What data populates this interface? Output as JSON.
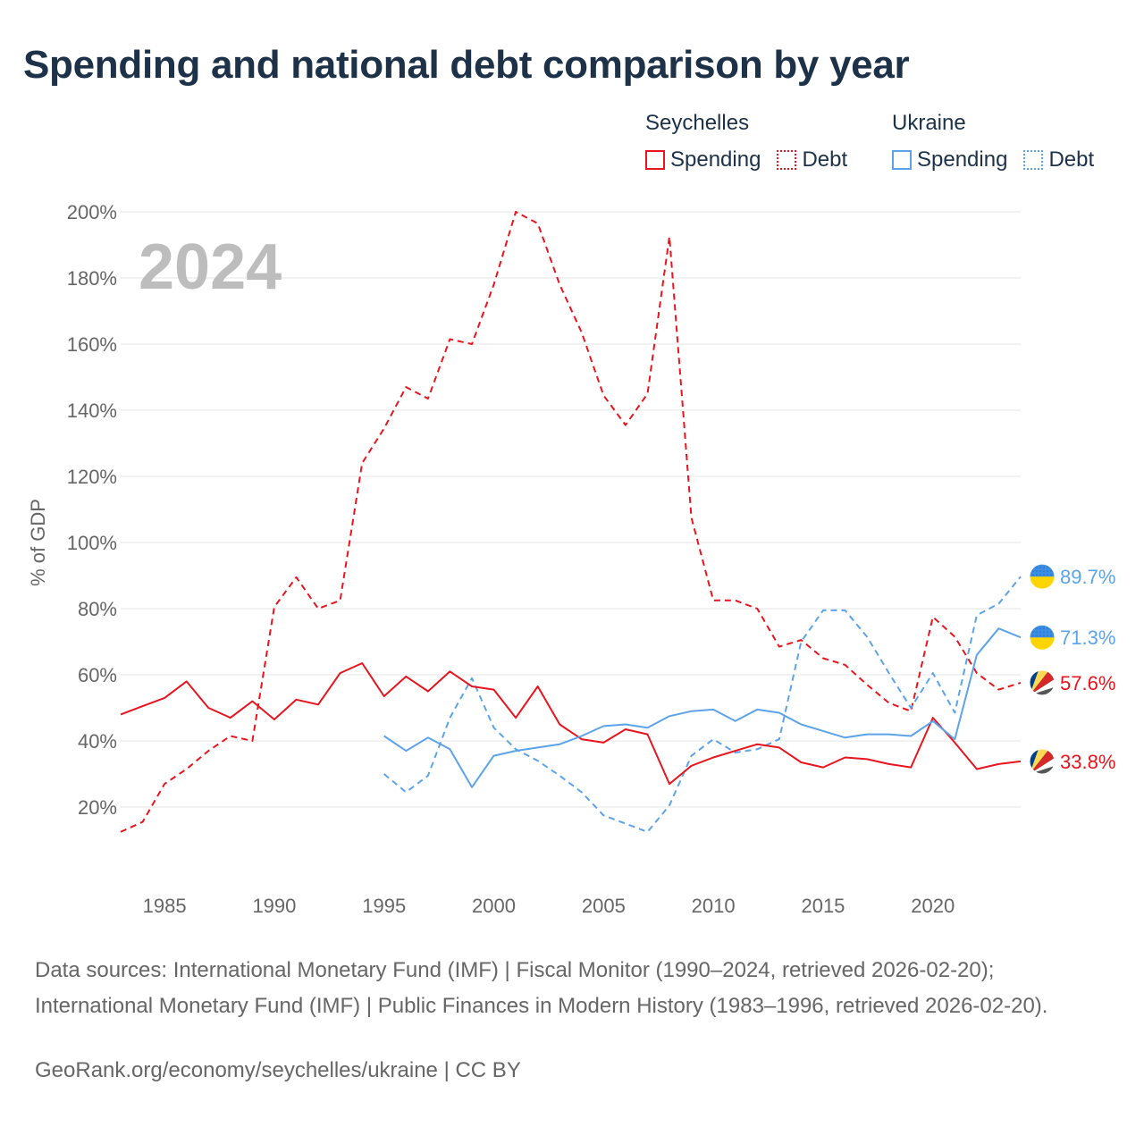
{
  "title": "Spending and national debt comparison by year",
  "legend": {
    "groups": [
      {
        "country": "Seychelles",
        "color": "#e8141e",
        "items": [
          {
            "label": "Spending",
            "style": "solid"
          },
          {
            "label": "Debt",
            "style": "dotted"
          }
        ]
      },
      {
        "country": "Ukraine",
        "color": "#5ca3ea",
        "items": [
          {
            "label": "Spending",
            "style": "solid"
          },
          {
            "label": "Debt",
            "style": "dotted"
          }
        ]
      }
    ]
  },
  "footer": {
    "sources": "Data sources: International Monetary Fund (IMF) | Fiscal Monitor (1990–2024, retrieved 2026-02-20); International Monetary Fund (IMF) | Public Finances in Modern History (1983–1996, retrieved 2026-02-20).",
    "link": "GeoRank.org/economy/seychelles/ukraine | CC BY"
  },
  "chart_data": {
    "type": "line",
    "year_label": "2024",
    "ylabel": "% of GDP",
    "xlabel": "",
    "xlim": [
      1983,
      2024
    ],
    "ylim": [
      0,
      200
    ],
    "y_ticks": [
      20,
      40,
      60,
      80,
      100,
      120,
      140,
      160,
      180,
      200
    ],
    "y_tick_labels": [
      "20%",
      "40%",
      "60%",
      "80%",
      "100%",
      "120%",
      "140%",
      "160%",
      "180%",
      "200%"
    ],
    "x_ticks": [
      1985,
      1990,
      1995,
      2000,
      2005,
      2010,
      2015,
      2020
    ],
    "x_tick_labels": [
      "1985",
      "1990",
      "1995",
      "2000",
      "2005",
      "2010",
      "2015",
      "2020"
    ],
    "grid": true,
    "series": [
      {
        "name": "Seychelles Debt",
        "country": "Seychelles",
        "kind": "debt",
        "color": "#e8141e",
        "dash": "7,5",
        "start_year": 1983,
        "end_label": "57.6%",
        "values": [
          12.5,
          15.5,
          27,
          31.5,
          37,
          41.5,
          40,
          80.5,
          89.5,
          80,
          82.5,
          124,
          134.5,
          147,
          143.5,
          161.5,
          160,
          178,
          200,
          196.5,
          178,
          163.5,
          144.5,
          135.5,
          145,
          192.5,
          107.5,
          82.5,
          82.5,
          80,
          68.5,
          70.5,
          65,
          63,
          57,
          51.5,
          49,
          77.5,
          71.5,
          60.5,
          55.5,
          57.6
        ]
      },
      {
        "name": "Ukraine Debt",
        "country": "Ukraine",
        "kind": "debt",
        "color": "#5ca3ea",
        "dash": "7,5",
        "start_year": 1995,
        "end_label": "89.7%",
        "values": [
          30,
          24.5,
          29.5,
          47,
          59,
          44,
          37.5,
          34,
          29.5,
          24.5,
          17.5,
          15,
          12.5,
          20.5,
          35.5,
          40.5,
          36.5,
          37.5,
          40.5,
          70,
          79.5,
          79.5,
          71.5,
          60.5,
          50,
          60.5,
          48.5,
          78,
          81.5,
          89.7
        ]
      },
      {
        "name": "Seychelles Spending",
        "country": "Seychelles",
        "kind": "spending",
        "color": "#e8141e",
        "dash": "",
        "start_year": 1983,
        "end_label": "33.8%",
        "values": [
          48,
          50.5,
          53,
          58,
          50,
          47,
          52,
          46.5,
          52.5,
          51,
          60.5,
          63.5,
          53.5,
          59.5,
          55,
          61,
          56.5,
          55.5,
          47,
          56.5,
          45,
          40.5,
          39.5,
          43.5,
          42,
          27,
          32.5,
          35,
          37,
          39,
          38,
          33.5,
          32,
          35,
          34.5,
          33,
          32,
          47,
          39.5,
          31.5,
          33,
          33.8
        ]
      },
      {
        "name": "Ukraine Spending",
        "country": "Ukraine",
        "kind": "spending",
        "color": "#5ca3ea",
        "dash": "",
        "start_year": 1995,
        "end_label": "71.3%",
        "values": [
          41.5,
          37,
          41,
          37.5,
          26,
          35.5,
          37,
          38,
          39,
          41.5,
          44.5,
          45,
          44,
          47.5,
          49,
          49.5,
          46,
          49.5,
          48.5,
          45,
          43,
          41,
          42,
          42,
          41.5,
          46,
          40.5,
          66,
          74,
          71.3
        ]
      }
    ]
  }
}
